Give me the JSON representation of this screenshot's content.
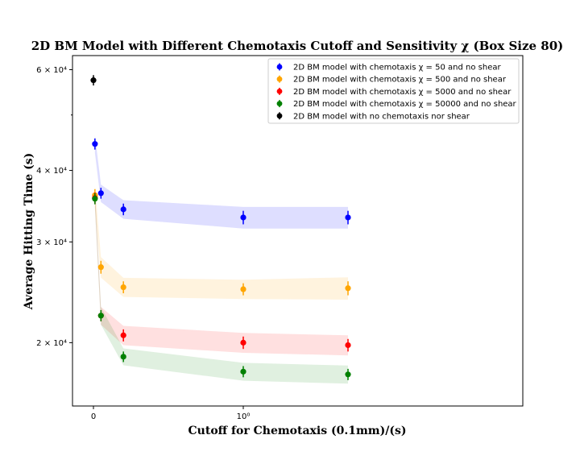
{
  "chart_data": {
    "type": "scatter",
    "title": "2D BM Model with Different Chemotaxis Cutoff and Sensitivity χ (Box Size 80)",
    "xlabel": "Cutoff for Chemotaxis (0.1mm)/(s)",
    "ylabel": "Average Hitting Time (s)",
    "xscale": "symlog",
    "yscale": "log",
    "x_ticks": [
      {
        "value": 0,
        "label": "0"
      },
      {
        "value": 1,
        "label": "10⁰"
      }
    ],
    "y_ticks": [
      {
        "value": 20000,
        "label": "2 × 10⁴"
      },
      {
        "value": 30000,
        "label": "3 × 10⁴"
      },
      {
        "value": 40000,
        "label": "4 × 10⁴"
      },
      {
        "value": 60000,
        "label": "6 × 10⁴"
      }
    ],
    "y_minor_ticks": [
      50000
    ],
    "ylim": [
      15500,
      63500
    ],
    "legend_position": "top-right",
    "grid": false,
    "series": [
      {
        "name": "2D BM model with chemotaxis χ = 50 and no shear",
        "color": "#0000ff",
        "band_color": "rgba(0,0,255,0.13)",
        "x": [
          0.01,
          0.05,
          0.2,
          1.0,
          5.0
        ],
        "y": [
          44500,
          36500,
          34200,
          33100,
          33100
        ],
        "yerr": [
          1000,
          800,
          800,
          900,
          900
        ]
      },
      {
        "name": "2D BM model with chemotaxis χ = 500 and no shear",
        "color": "#ffa500",
        "band_color": "rgba(255,165,0,0.13)",
        "x": [
          0.01,
          0.05,
          0.2,
          1.0,
          5.0
        ],
        "y": [
          36200,
          27100,
          25000,
          24800,
          24900
        ],
        "yerr": [
          900,
          700,
          600,
          600,
          700
        ]
      },
      {
        "name": "2D BM model with chemotaxis χ = 5000 and no shear",
        "color": "#ff0000",
        "band_color": "rgba(255,0,0,0.12)",
        "x": [
          0.01,
          0.05,
          0.2,
          1.0,
          5.0
        ],
        "y": [
          35800,
          22300,
          20600,
          20000,
          19800
        ],
        "yerr": [
          800,
          500,
          500,
          500,
          500
        ]
      },
      {
        "name": "2D BM model with chemotaxis χ = 50000 and no shear",
        "color": "#008000",
        "band_color": "rgba(0,128,0,0.12)",
        "x": [
          0.01,
          0.05,
          0.2,
          1.0,
          5.0
        ],
        "y": [
          35700,
          22300,
          18900,
          17800,
          17600
        ],
        "yerr": [
          800,
          500,
          400,
          400,
          400
        ]
      },
      {
        "name": "2D BM model with no chemotaxis nor shear",
        "color": "#000000",
        "band_color": "",
        "x": [
          0.0
        ],
        "y": [
          57500
        ],
        "yerr": [
          1200
        ]
      }
    ]
  }
}
